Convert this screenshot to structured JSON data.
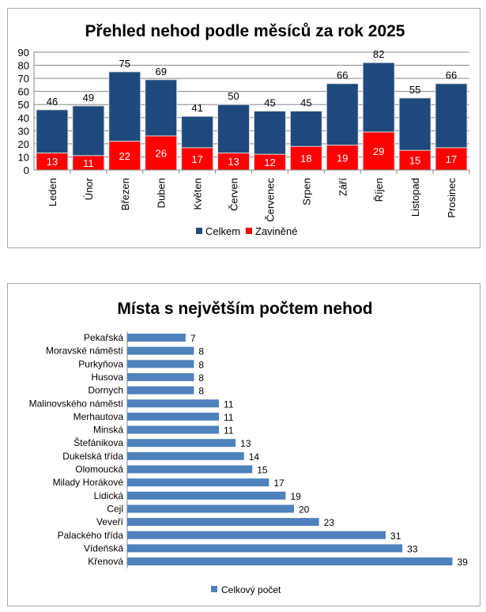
{
  "chart_data": [
    {
      "type": "bar",
      "title": "Přehled nehod podle měsíců za rok 2025",
      "categories": [
        "Leden",
        "Únor",
        "Březen",
        "Duben",
        "Květen",
        "Červen",
        "Červenec",
        "Srpen",
        "Září",
        "Říjen",
        "Listopad",
        "Prosinec"
      ],
      "series": [
        {
          "name": "Celkem",
          "color": "#1f497d",
          "values": [
            46,
            49,
            75,
            69,
            41,
            50,
            45,
            45,
            66,
            82,
            55,
            66
          ]
        },
        {
          "name": "Zaviněné",
          "color": "#ff0000",
          "values": [
            13,
            11,
            22,
            26,
            17,
            13,
            12,
            18,
            19,
            29,
            15,
            17
          ]
        }
      ],
      "ylim": [
        0,
        90
      ],
      "yticks": [
        "0",
        "10",
        "20",
        "30",
        "40",
        "50",
        "60",
        "70",
        "80",
        "90"
      ],
      "grid": true,
      "legend": "bottom"
    },
    {
      "type": "bar",
      "orientation": "horizontal",
      "title": "Místa s největším počtem nehod",
      "categories": [
        "Pekařská",
        "Moravské náměstí",
        "Purkyňova",
        "Husova",
        "Dornych",
        "Malinovského náměstí",
        "Merhautova",
        "Minská",
        "Štefánikova",
        "Dukelská třída",
        "Olomoucká",
        "Milady Horákové",
        "Lidická",
        "Cejl",
        "Veveří",
        "Palackého třída",
        "Vídeňská",
        "Křenová"
      ],
      "series": [
        {
          "name": "Celkový počet",
          "color": "#4f81bd",
          "values": [
            7,
            8,
            8,
            8,
            8,
            11,
            11,
            11,
            13,
            14,
            15,
            17,
            19,
            20,
            23,
            31,
            33,
            39
          ]
        }
      ],
      "legend": "bottom"
    }
  ]
}
